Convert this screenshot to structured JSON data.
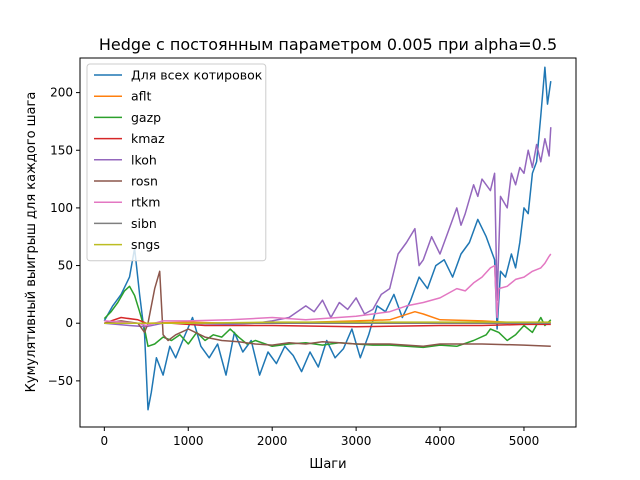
{
  "chart_data": {
    "type": "line",
    "title": "Hedge с постоянным параметром 0.005 при alpha=0.5",
    "xlabel": "Шаги",
    "ylabel": "Кумулятивный выигрыш для каждого шага",
    "xlim": [
      -290,
      5620
    ],
    "ylim": [
      -90,
      230
    ],
    "xticks": [
      0,
      1000,
      2000,
      3000,
      4000,
      5000
    ],
    "yticks": [
      -50,
      0,
      50,
      100,
      150,
      200
    ],
    "grid": false,
    "legend_position": "top-left",
    "series": [
      {
        "name": "Для всех котировок",
        "color": "#1f77b4",
        "points": [
          [
            0,
            2
          ],
          [
            100,
            15
          ],
          [
            200,
            25
          ],
          [
            300,
            40
          ],
          [
            360,
            65
          ],
          [
            420,
            25
          ],
          [
            480,
            -10
          ],
          [
            520,
            -75
          ],
          [
            560,
            -60
          ],
          [
            620,
            -30
          ],
          [
            700,
            -45
          ],
          [
            780,
            -20
          ],
          [
            850,
            -30
          ],
          [
            950,
            -12
          ],
          [
            1050,
            5
          ],
          [
            1150,
            -20
          ],
          [
            1250,
            -30
          ],
          [
            1350,
            -18
          ],
          [
            1450,
            -45
          ],
          [
            1550,
            -8
          ],
          [
            1650,
            -25
          ],
          [
            1750,
            -15
          ],
          [
            1850,
            -45
          ],
          [
            1950,
            -25
          ],
          [
            2050,
            -35
          ],
          [
            2150,
            -20
          ],
          [
            2250,
            -28
          ],
          [
            2350,
            -42
          ],
          [
            2450,
            -25
          ],
          [
            2550,
            -38
          ],
          [
            2650,
            -15
          ],
          [
            2750,
            -30
          ],
          [
            2850,
            -22
          ],
          [
            2950,
            -5
          ],
          [
            3050,
            -30
          ],
          [
            3150,
            -10
          ],
          [
            3250,
            15
          ],
          [
            3350,
            10
          ],
          [
            3450,
            25
          ],
          [
            3550,
            5
          ],
          [
            3650,
            20
          ],
          [
            3750,
            40
          ],
          [
            3850,
            30
          ],
          [
            3950,
            50
          ],
          [
            4050,
            55
          ],
          [
            4150,
            40
          ],
          [
            4250,
            60
          ],
          [
            4350,
            70
          ],
          [
            4450,
            90
          ],
          [
            4550,
            75
          ],
          [
            4650,
            55
          ],
          [
            4680,
            -5
          ],
          [
            4720,
            45
          ],
          [
            4780,
            40
          ],
          [
            4850,
            60
          ],
          [
            4900,
            48
          ],
          [
            4950,
            70
          ],
          [
            5000,
            100
          ],
          [
            5050,
            95
          ],
          [
            5100,
            130
          ],
          [
            5150,
            140
          ],
          [
            5200,
            180
          ],
          [
            5250,
            222
          ],
          [
            5280,
            190
          ],
          [
            5320,
            210
          ]
        ]
      },
      {
        "name": "aflt",
        "color": "#ff7f0e",
        "points": [
          [
            0,
            0
          ],
          [
            500,
            0
          ],
          [
            1000,
            1
          ],
          [
            1500,
            0
          ],
          [
            2000,
            0
          ],
          [
            2500,
            1
          ],
          [
            3000,
            2
          ],
          [
            3400,
            3
          ],
          [
            3700,
            10
          ],
          [
            3800,
            8
          ],
          [
            4000,
            3
          ],
          [
            4500,
            2
          ],
          [
            5000,
            0
          ],
          [
            5320,
            1
          ]
        ]
      },
      {
        "name": "gazp",
        "color": "#2ca02c",
        "points": [
          [
            0,
            4
          ],
          [
            80,
            10
          ],
          [
            160,
            18
          ],
          [
            240,
            28
          ],
          [
            300,
            32
          ],
          [
            360,
            24
          ],
          [
            420,
            10
          ],
          [
            480,
            -5
          ],
          [
            520,
            -20
          ],
          [
            600,
            -18
          ],
          [
            700,
            -12
          ],
          [
            800,
            -15
          ],
          [
            900,
            -10
          ],
          [
            1000,
            -18
          ],
          [
            1100,
            -8
          ],
          [
            1200,
            -15
          ],
          [
            1300,
            -10
          ],
          [
            1400,
            -12
          ],
          [
            1500,
            -5
          ],
          [
            1600,
            -12
          ],
          [
            1700,
            -18
          ],
          [
            1800,
            -15
          ],
          [
            2000,
            -20
          ],
          [
            2200,
            -18
          ],
          [
            2400,
            -17
          ],
          [
            2600,
            -19
          ],
          [
            2800,
            -17
          ],
          [
            3000,
            -18
          ],
          [
            3200,
            -19
          ],
          [
            3400,
            -19
          ],
          [
            3600,
            -20
          ],
          [
            3800,
            -21
          ],
          [
            4000,
            -19
          ],
          [
            4200,
            -20
          ],
          [
            4400,
            -15
          ],
          [
            4550,
            -10
          ],
          [
            4600,
            -5
          ],
          [
            4700,
            -8
          ],
          [
            4800,
            -15
          ],
          [
            4900,
            -10
          ],
          [
            5000,
            -2
          ],
          [
            5100,
            -8
          ],
          [
            5200,
            5
          ],
          [
            5250,
            -2
          ],
          [
            5320,
            3
          ]
        ]
      },
      {
        "name": "kmaz",
        "color": "#d62728",
        "points": [
          [
            0,
            0
          ],
          [
            200,
            5
          ],
          [
            400,
            3
          ],
          [
            500,
            0
          ],
          [
            800,
            0
          ],
          [
            1200,
            -2
          ],
          [
            2000,
            -2
          ],
          [
            3000,
            -3
          ],
          [
            4000,
            -2
          ],
          [
            4500,
            -2
          ],
          [
            5000,
            -1
          ],
          [
            5320,
            -1
          ]
        ]
      },
      {
        "name": "lkoh",
        "color": "#9467bd",
        "points": [
          [
            0,
            0
          ],
          [
            300,
            -2
          ],
          [
            500,
            -3
          ],
          [
            700,
            0
          ],
          [
            1000,
            0
          ],
          [
            1500,
            -1
          ],
          [
            1800,
            0
          ],
          [
            2000,
            2
          ],
          [
            2200,
            5
          ],
          [
            2400,
            15
          ],
          [
            2500,
            10
          ],
          [
            2600,
            20
          ],
          [
            2700,
            5
          ],
          [
            2800,
            18
          ],
          [
            2900,
            12
          ],
          [
            3000,
            22
          ],
          [
            3100,
            8
          ],
          [
            3200,
            12
          ],
          [
            3300,
            25
          ],
          [
            3400,
            30
          ],
          [
            3500,
            60
          ],
          [
            3600,
            70
          ],
          [
            3700,
            82
          ],
          [
            3750,
            50
          ],
          [
            3800,
            55
          ],
          [
            3900,
            75
          ],
          [
            4000,
            60
          ],
          [
            4100,
            80
          ],
          [
            4200,
            100
          ],
          [
            4250,
            85
          ],
          [
            4300,
            95
          ],
          [
            4400,
            120
          ],
          [
            4450,
            110
          ],
          [
            4500,
            125
          ],
          [
            4600,
            115
          ],
          [
            4650,
            130
          ],
          [
            4680,
            20
          ],
          [
            4720,
            110
          ],
          [
            4800,
            100
          ],
          [
            4850,
            130
          ],
          [
            4900,
            120
          ],
          [
            4950,
            135
          ],
          [
            5000,
            130
          ],
          [
            5050,
            150
          ],
          [
            5100,
            135
          ],
          [
            5150,
            155
          ],
          [
            5200,
            140
          ],
          [
            5250,
            160
          ],
          [
            5300,
            145
          ],
          [
            5320,
            170
          ]
        ]
      },
      {
        "name": "rosn",
        "color": "#8c564b",
        "points": [
          [
            0,
            0
          ],
          [
            200,
            2
          ],
          [
            400,
            0
          ],
          [
            480,
            -8
          ],
          [
            520,
            0
          ],
          [
            600,
            30
          ],
          [
            660,
            45
          ],
          [
            700,
            -10
          ],
          [
            760,
            -15
          ],
          [
            850,
            -10
          ],
          [
            1000,
            -5
          ],
          [
            1200,
            -12
          ],
          [
            1400,
            -15
          ],
          [
            1600,
            -16
          ],
          [
            1800,
            -18
          ],
          [
            2000,
            -19
          ],
          [
            2200,
            -17
          ],
          [
            2400,
            -18
          ],
          [
            2600,
            -16
          ],
          [
            2800,
            -17
          ],
          [
            3000,
            -18
          ],
          [
            3400,
            -18
          ],
          [
            3600,
            -19
          ],
          [
            3800,
            -20
          ],
          [
            4000,
            -18
          ],
          [
            4500,
            -18
          ],
          [
            5000,
            -19
          ],
          [
            5320,
            -20
          ]
        ]
      },
      {
        "name": "rtkm",
        "color": "#e377c2",
        "points": [
          [
            0,
            2
          ],
          [
            400,
            0
          ],
          [
            500,
            -2
          ],
          [
            700,
            2
          ],
          [
            1000,
            2
          ],
          [
            1500,
            3
          ],
          [
            2000,
            5
          ],
          [
            2400,
            3
          ],
          [
            3000,
            6
          ],
          [
            3200,
            8
          ],
          [
            3400,
            10
          ],
          [
            3600,
            15
          ],
          [
            3800,
            18
          ],
          [
            4000,
            22
          ],
          [
            4200,
            30
          ],
          [
            4300,
            28
          ],
          [
            4400,
            35
          ],
          [
            4500,
            40
          ],
          [
            4600,
            48
          ],
          [
            4650,
            50
          ],
          [
            4680,
            5
          ],
          [
            4700,
            30
          ],
          [
            4800,
            32
          ],
          [
            4900,
            38
          ],
          [
            5000,
            40
          ],
          [
            5100,
            45
          ],
          [
            5200,
            48
          ],
          [
            5250,
            52
          ],
          [
            5300,
            58
          ],
          [
            5320,
            60
          ]
        ]
      },
      {
        "name": "sibn",
        "color": "#7f7f7f",
        "points": [
          [
            0,
            0
          ],
          [
            500,
            0
          ],
          [
            1000,
            0
          ],
          [
            1500,
            0
          ],
          [
            2000,
            0
          ],
          [
            2500,
            0
          ],
          [
            3000,
            0
          ],
          [
            3500,
            0
          ],
          [
            4000,
            0
          ],
          [
            4500,
            0
          ],
          [
            5000,
            0
          ],
          [
            5320,
            0
          ]
        ]
      },
      {
        "name": "sngs",
        "color": "#bcbd22",
        "points": [
          [
            0,
            0
          ],
          [
            1000,
            0
          ],
          [
            2000,
            1
          ],
          [
            3000,
            1
          ],
          [
            4000,
            1
          ],
          [
            5000,
            1
          ],
          [
            5320,
            1
          ]
        ]
      }
    ]
  }
}
